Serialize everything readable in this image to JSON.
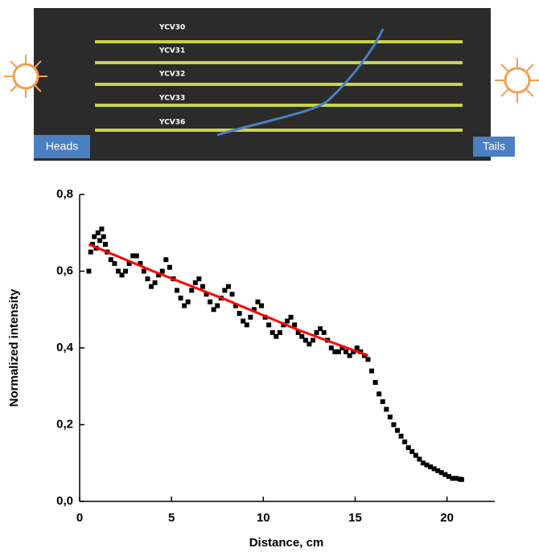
{
  "photo": {
    "rod_labels": [
      "YCV30",
      "YCV31",
      "YCV32",
      "YCV33",
      "YCV36"
    ],
    "left_label": "Heads",
    "right_label": "Tails"
  },
  "chart_data": {
    "type": "scatter",
    "x_label": "Distance, cm",
    "y_label": "Normalized intensity",
    "xlim": [
      0,
      22.6
    ],
    "ylim": [
      0,
      0.8
    ],
    "xticks": [
      0,
      5,
      10,
      15,
      20
    ],
    "yticks": [
      {
        "value": 0,
        "label": "0,0"
      },
      {
        "value": 0.2,
        "label": "0,2"
      },
      {
        "value": 0.4,
        "label": "0,4"
      },
      {
        "value": 0.6,
        "label": "0,6"
      },
      {
        "value": 0.8,
        "label": "0,8"
      }
    ],
    "series": [
      {
        "color": "#000000",
        "mode": "markers",
        "x": [
          0.5,
          0.6,
          0.7,
          0.8,
          0.9,
          1.0,
          1.1,
          1.2,
          1.3,
          1.4,
          1.5,
          1.7,
          1.9,
          2.1,
          2.3,
          2.5,
          2.7,
          2.9,
          3.1,
          3.3,
          3.5,
          3.7,
          3.9,
          4.1,
          4.3,
          4.5,
          4.7,
          4.9,
          5.1,
          5.3,
          5.5,
          5.7,
          5.9,
          6.1,
          6.3,
          6.5,
          6.7,
          6.9,
          7.1,
          7.3,
          7.5,
          7.7,
          7.9,
          8.1,
          8.3,
          8.5,
          8.7,
          8.9,
          9.1,
          9.3,
          9.5,
          9.7,
          9.9,
          10.1,
          10.3,
          10.5,
          10.7,
          10.9,
          11.1,
          11.3,
          11.5,
          11.7,
          11.9,
          12.1,
          12.3,
          12.5,
          12.7,
          12.9,
          13.1,
          13.3,
          13.5,
          13.7,
          13.9,
          14.1,
          14.3,
          14.5,
          14.7,
          14.9,
          15.1,
          15.3,
          15.5,
          15.7,
          15.9,
          16.1,
          16.3,
          16.5,
          16.7,
          16.9,
          17.1,
          17.3,
          17.5,
          17.7,
          17.9,
          18.1,
          18.3,
          18.5,
          18.7,
          18.9,
          19.1,
          19.3,
          19.5,
          19.7,
          19.9,
          20.1,
          20.3,
          20.5,
          20.7,
          20.8
        ],
        "values": [
          0.6,
          0.65,
          0.67,
          0.69,
          0.66,
          0.7,
          0.68,
          0.71,
          0.69,
          0.67,
          0.65,
          0.63,
          0.62,
          0.6,
          0.59,
          0.6,
          0.62,
          0.64,
          0.64,
          0.62,
          0.6,
          0.58,
          0.56,
          0.57,
          0.59,
          0.6,
          0.63,
          0.61,
          0.58,
          0.55,
          0.53,
          0.51,
          0.52,
          0.55,
          0.57,
          0.58,
          0.56,
          0.54,
          0.52,
          0.5,
          0.51,
          0.53,
          0.55,
          0.56,
          0.54,
          0.51,
          0.49,
          0.47,
          0.46,
          0.48,
          0.5,
          0.52,
          0.51,
          0.48,
          0.46,
          0.44,
          0.43,
          0.44,
          0.46,
          0.47,
          0.48,
          0.46,
          0.44,
          0.43,
          0.42,
          0.41,
          0.42,
          0.44,
          0.45,
          0.44,
          0.42,
          0.4,
          0.39,
          0.39,
          0.4,
          0.39,
          0.38,
          0.39,
          0.4,
          0.39,
          0.38,
          0.37,
          0.34,
          0.31,
          0.28,
          0.26,
          0.24,
          0.22,
          0.2,
          0.185,
          0.17,
          0.155,
          0.14,
          0.13,
          0.12,
          0.11,
          0.1,
          0.095,
          0.09,
          0.085,
          0.08,
          0.075,
          0.07,
          0.065,
          0.06,
          0.06,
          0.058,
          0.057
        ]
      },
      {
        "color": "#ff0000",
        "mode": "line",
        "x": [
          0.5,
          4,
          8,
          12,
          15.7
        ],
        "values": [
          0.67,
          0.6,
          0.525,
          0.445,
          0.38
        ]
      }
    ]
  }
}
